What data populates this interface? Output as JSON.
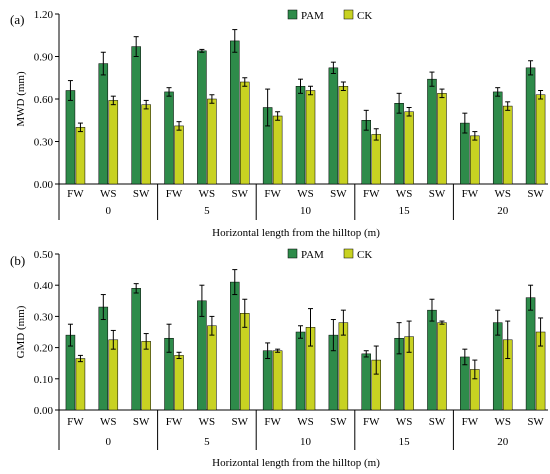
{
  "figure": {
    "x_axis_title": "Horizontal length from the hilltop (m)"
  },
  "colors": {
    "PAM": "#2e8b4a",
    "CK": "#c8d222",
    "error_bar": "#000000"
  },
  "legend": [
    "PAM",
    "CK"
  ],
  "chart_data": [
    {
      "panel_label": "(a)",
      "type": "bar",
      "ylabel": "MWD (mm)",
      "xlabel": "Horizontal length from the hilltop (m)",
      "ylim": [
        0,
        1.2
      ],
      "yticks": [
        "0.00",
        "0.30",
        "0.60",
        "0.90",
        "1.20"
      ],
      "groups": [
        "0",
        "5",
        "10",
        "15",
        "20"
      ],
      "subcategories": [
        "FW",
        "WS",
        "SW"
      ],
      "legend_position": "top-center",
      "series": [
        {
          "name": "PAM",
          "values": [
            [
              0.66,
              0.85,
              0.97
            ],
            [
              0.65,
              0.94,
              1.01
            ],
            [
              0.54,
              0.69,
              0.82
            ],
            [
              0.45,
              0.57,
              0.74
            ],
            [
              0.43,
              0.65,
              0.82
            ]
          ],
          "errors": [
            [
              0.07,
              0.08,
              0.07
            ],
            [
              0.03,
              0.01,
              0.08
            ],
            [
              0.13,
              0.05,
              0.04
            ],
            [
              0.07,
              0.07,
              0.05
            ],
            [
              0.07,
              0.03,
              0.05
            ]
          ]
        },
        {
          "name": "CK",
          "values": [
            [
              0.4,
              0.59,
              0.56
            ],
            [
              0.41,
              0.6,
              0.72
            ],
            [
              0.48,
              0.66,
              0.69
            ],
            [
              0.35,
              0.51,
              0.64
            ],
            [
              0.34,
              0.55,
              0.63
            ]
          ],
          "errors": [
            [
              0.03,
              0.03,
              0.03
            ],
            [
              0.03,
              0.03,
              0.03
            ],
            [
              0.03,
              0.03,
              0.03
            ],
            [
              0.04,
              0.03,
              0.03
            ],
            [
              0.03,
              0.03,
              0.03
            ]
          ]
        }
      ]
    },
    {
      "panel_label": "(b)",
      "type": "bar",
      "ylabel": "GMD (mm)",
      "xlabel": "Horizontal length from the hilltop (m)",
      "ylim": [
        0,
        0.5
      ],
      "yticks": [
        "0.00",
        "0.10",
        "0.20",
        "0.30",
        "0.40",
        "0.50"
      ],
      "groups": [
        "0",
        "5",
        "10",
        "15",
        "20"
      ],
      "subcategories": [
        "FW",
        "WS",
        "SW"
      ],
      "legend_position": "top-center",
      "series": [
        {
          "name": "PAM",
          "values": [
            [
              0.24,
              0.33,
              0.39
            ],
            [
              0.23,
              0.35,
              0.41
            ],
            [
              0.19,
              0.25,
              0.24
            ],
            [
              0.18,
              0.23,
              0.32
            ],
            [
              0.17,
              0.28,
              0.36
            ]
          ],
          "errors": [
            [
              0.035,
              0.04,
              0.015
            ],
            [
              0.045,
              0.05,
              0.04
            ],
            [
              0.025,
              0.02,
              0.05
            ],
            [
              0.01,
              0.05,
              0.035
            ],
            [
              0.025,
              0.04,
              0.04
            ]
          ]
        },
        {
          "name": "CK",
          "values": [
            [
              0.165,
              0.225,
              0.22
            ],
            [
              0.175,
              0.27,
              0.31
            ],
            [
              0.19,
              0.265,
              0.28
            ],
            [
              0.16,
              0.235,
              0.28
            ],
            [
              0.13,
              0.225,
              0.25
            ]
          ],
          "errors": [
            [
              0.01,
              0.03,
              0.025
            ],
            [
              0.01,
              0.03,
              0.045
            ],
            [
              0.005,
              0.06,
              0.04
            ],
            [
              0.045,
              0.05,
              0.005
            ],
            [
              0.03,
              0.06,
              0.045
            ]
          ]
        }
      ]
    }
  ]
}
